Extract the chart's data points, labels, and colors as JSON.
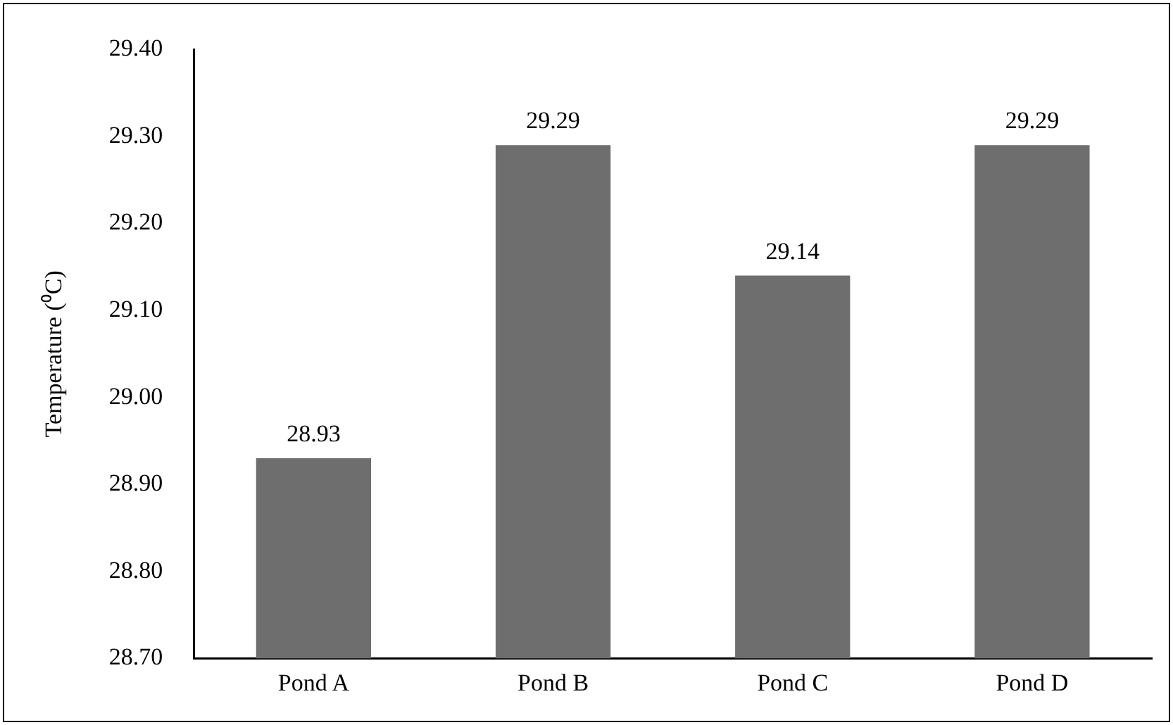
{
  "chart_data": {
    "type": "bar",
    "ylabel": "Temperature (⁰C)",
    "categories": [
      "Pond A",
      "Pond B",
      "Pond C",
      "Pond D"
    ],
    "values": [
      28.93,
      29.29,
      29.14,
      29.29
    ],
    "color": "#6e6e6e",
    "ylim": [
      28.7,
      29.4
    ],
    "yticks": [
      {
        "value": 28.7,
        "label": "28.70"
      },
      {
        "value": 28.8,
        "label": "28.80"
      },
      {
        "value": 28.9,
        "label": "28.90"
      },
      {
        "value": 29.0,
        "label": "29.00"
      },
      {
        "value": 29.1,
        "label": "29.10"
      },
      {
        "value": 29.2,
        "label": "29.20"
      },
      {
        "value": 29.3,
        "label": "29.30"
      },
      {
        "value": 29.4,
        "label": "29.40"
      }
    ],
    "grid": false,
    "legend": false,
    "data_labels": true
  }
}
